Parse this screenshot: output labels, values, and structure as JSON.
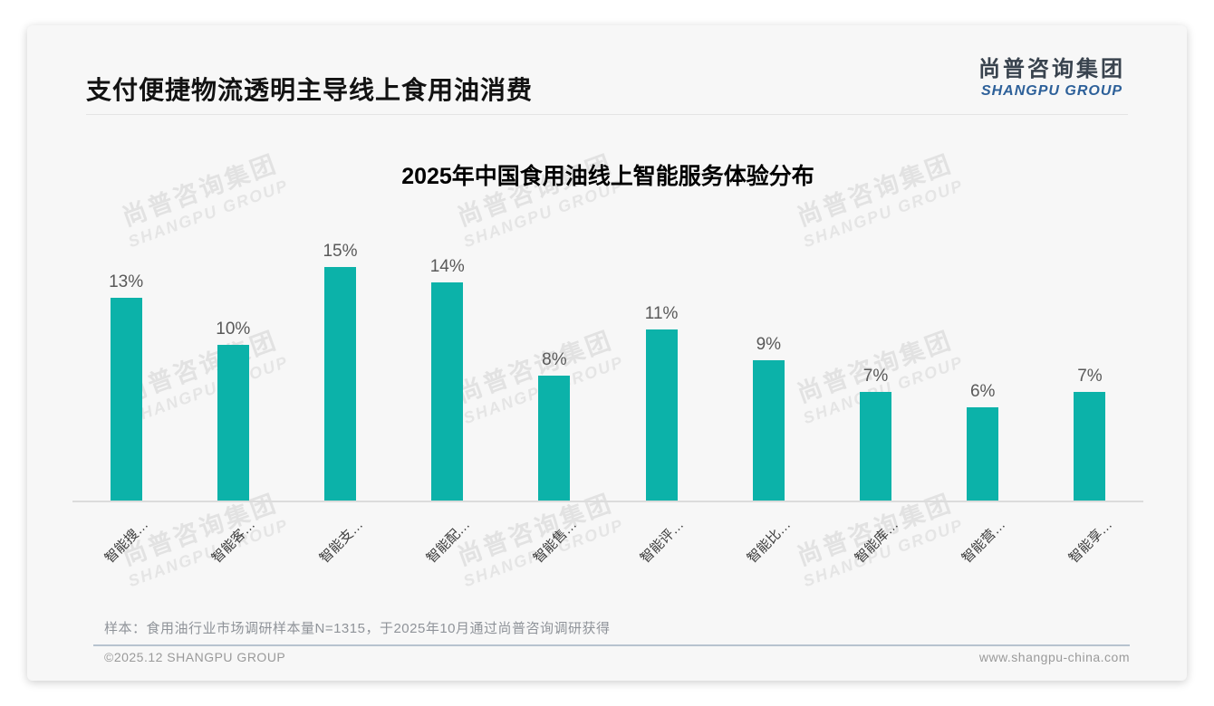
{
  "page": {
    "title": "支付便捷物流透明主导线上食用油消费",
    "footnote": "样本：食用油行业市场调研样本量N=1315，于2025年10月通过尚普咨询调研获得",
    "footer_left": "©2025.12 SHANGPU GROUP",
    "footer_right": "www.shangpu-china.com"
  },
  "logo": {
    "cn": "尚普咨询集团",
    "en": "SHANGPU GROUP"
  },
  "watermark": {
    "cn": "尚普咨询集团",
    "en": "SHANGPU GROUP"
  },
  "chart_data": {
    "type": "bar",
    "title": "2025年中国食用油线上智能服务体验分布",
    "categories": [
      "智能搜…",
      "智能客…",
      "智能支…",
      "智能配…",
      "智能售…",
      "智能评…",
      "智能比…",
      "智能库…",
      "智能营…",
      "智能享…"
    ],
    "values": [
      13,
      10,
      15,
      14,
      8,
      11,
      9,
      7,
      6,
      7
    ],
    "unit": "%",
    "ylim": [
      0,
      16
    ],
    "grid": false,
    "legend": false,
    "bar_color": "#0cb2a9",
    "value_label_color": "#595959"
  }
}
